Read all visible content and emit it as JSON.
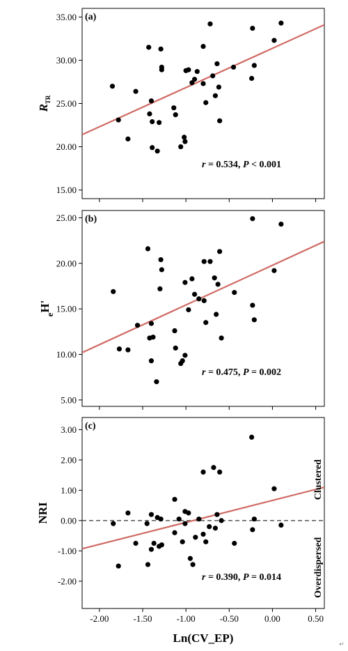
{
  "colors": {
    "point": "#000000",
    "fit_line": "#d06a64",
    "zero_line": "#333333",
    "frame": "#000000"
  },
  "chart_data": [
    {
      "type": "scatter",
      "panel_label": "(a)",
      "ylabel_main": "R",
      "ylabel_sub": "TR",
      "xlim": [
        -2.2,
        0.6
      ],
      "ylim": [
        14,
        36
      ],
      "yticks": [
        15,
        20,
        25,
        30,
        35
      ],
      "ytick_labels": [
        "15.00",
        "20.00",
        "25.00",
        "30.00",
        "35.00"
      ],
      "stat_r": "r",
      "stat_r_value": " = 0.534, ",
      "stat_p": "P",
      "stat_p_value": " < 0.001",
      "fit": {
        "x": [
          -2.2,
          0.6
        ],
        "y": [
          21.4,
          34.1
        ]
      },
      "points": [
        {
          "x": -1.85,
          "y": 27.0
        },
        {
          "x": -1.78,
          "y": 23.1
        },
        {
          "x": -1.67,
          "y": 20.9
        },
        {
          "x": -1.58,
          "y": 26.4
        },
        {
          "x": -1.43,
          "y": 31.5
        },
        {
          "x": -1.42,
          "y": 23.8
        },
        {
          "x": -1.4,
          "y": 25.3
        },
        {
          "x": -1.39,
          "y": 22.9
        },
        {
          "x": -1.39,
          "y": 19.9
        },
        {
          "x": -1.33,
          "y": 19.5
        },
        {
          "x": -1.31,
          "y": 22.8
        },
        {
          "x": -1.29,
          "y": 31.3
        },
        {
          "x": -1.28,
          "y": 29.2
        },
        {
          "x": -1.28,
          "y": 28.9
        },
        {
          "x": -1.14,
          "y": 24.5
        },
        {
          "x": -1.12,
          "y": 23.7
        },
        {
          "x": -1.06,
          "y": 20.0
        },
        {
          "x": -1.02,
          "y": 21.1
        },
        {
          "x": -1.01,
          "y": 20.6
        },
        {
          "x": -1.0,
          "y": 28.8
        },
        {
          "x": -0.97,
          "y": 28.9
        },
        {
          "x": -0.93,
          "y": 27.4
        },
        {
          "x": -0.9,
          "y": 27.8
        },
        {
          "x": -0.87,
          "y": 28.7
        },
        {
          "x": -0.8,
          "y": 31.6
        },
        {
          "x": -0.8,
          "y": 27.3
        },
        {
          "x": -0.77,
          "y": 25.1
        },
        {
          "x": -0.72,
          "y": 34.2
        },
        {
          "x": -0.69,
          "y": 28.2
        },
        {
          "x": -0.66,
          "y": 25.9
        },
        {
          "x": -0.64,
          "y": 29.6
        },
        {
          "x": -0.62,
          "y": 26.9
        },
        {
          "x": -0.61,
          "y": 23.0
        },
        {
          "x": -0.45,
          "y": 29.2
        },
        {
          "x": -0.24,
          "y": 27.9
        },
        {
          "x": -0.23,
          "y": 33.7
        },
        {
          "x": -0.21,
          "y": 29.4
        },
        {
          "x": 0.02,
          "y": 32.3
        },
        {
          "x": 0.1,
          "y": 34.3
        }
      ]
    },
    {
      "type": "scatter",
      "panel_label": "(b)",
      "ylabel_main": "H'",
      "ylabel_sub": "e",
      "xlim": [
        -2.2,
        0.6
      ],
      "ylim": [
        4.3,
        25.8
      ],
      "yticks": [
        5,
        10,
        15,
        20,
        25
      ],
      "ytick_labels": [
        "5.00",
        "10.00",
        "15.00",
        "20.00",
        "25.00"
      ],
      "stat_r": "r",
      "stat_r_value": " = 0.475, ",
      "stat_p": "P",
      "stat_p_value": " = 0.002",
      "fit": {
        "x": [
          -2.2,
          0.6
        ],
        "y": [
          10.2,
          22.4
        ]
      },
      "points": [
        {
          "x": -1.84,
          "y": 16.9
        },
        {
          "x": -1.77,
          "y": 10.6
        },
        {
          "x": -1.67,
          "y": 10.5
        },
        {
          "x": -1.56,
          "y": 13.2
        },
        {
          "x": -1.44,
          "y": 21.6
        },
        {
          "x": -1.42,
          "y": 11.8
        },
        {
          "x": -1.4,
          "y": 13.4
        },
        {
          "x": -1.4,
          "y": 9.3
        },
        {
          "x": -1.38,
          "y": 11.9
        },
        {
          "x": -1.34,
          "y": 7.0
        },
        {
          "x": -1.3,
          "y": 17.2
        },
        {
          "x": -1.29,
          "y": 20.4
        },
        {
          "x": -1.28,
          "y": 19.3
        },
        {
          "x": -1.13,
          "y": 12.6
        },
        {
          "x": -1.12,
          "y": 10.7
        },
        {
          "x": -1.06,
          "y": 9.0
        },
        {
          "x": -1.04,
          "y": 9.3
        },
        {
          "x": -1.01,
          "y": 9.9
        },
        {
          "x": -1.01,
          "y": 17.9
        },
        {
          "x": -0.97,
          "y": 14.9
        },
        {
          "x": -0.93,
          "y": 18.3
        },
        {
          "x": -0.9,
          "y": 16.6
        },
        {
          "x": -0.85,
          "y": 16.1
        },
        {
          "x": -0.79,
          "y": 20.2
        },
        {
          "x": -0.79,
          "y": 15.9
        },
        {
          "x": -0.77,
          "y": 13.5
        },
        {
          "x": -0.72,
          "y": 20.2
        },
        {
          "x": -0.67,
          "y": 18.4
        },
        {
          "x": -0.65,
          "y": 14.4
        },
        {
          "x": -0.63,
          "y": 17.7
        },
        {
          "x": -0.61,
          "y": 21.3
        },
        {
          "x": -0.59,
          "y": 11.8
        },
        {
          "x": -0.44,
          "y": 16.8
        },
        {
          "x": -0.23,
          "y": 15.4
        },
        {
          "x": -0.23,
          "y": 24.9
        },
        {
          "x": -0.21,
          "y": 13.8
        },
        {
          "x": 0.02,
          "y": 19.2
        },
        {
          "x": 0.1,
          "y": 24.3
        }
      ]
    },
    {
      "type": "scatter",
      "panel_label": "(c)",
      "ylabel_main": "NRI",
      "ylabel_sub": "",
      "xlim": [
        -2.2,
        0.6
      ],
      "ylim": [
        -2.9,
        3.4
      ],
      "yticks": [
        -2,
        -1,
        0,
        1,
        2,
        3
      ],
      "ytick_labels": [
        "-2.00",
        "-1.00",
        "0.00",
        "1.00",
        "2.00",
        "3.00"
      ],
      "stat_r": "r",
      "stat_r_value": " = 0.390, ",
      "stat_p": "P",
      "stat_p_value": " = 0.014",
      "side_upper": "Clustered",
      "side_lower": "Overdispersed",
      "zero_line": 0,
      "fit": {
        "x": [
          -2.2,
          0.6
        ],
        "y": [
          -0.93,
          1.1
        ]
      },
      "points": [
        {
          "x": -1.84,
          "y": -0.1
        },
        {
          "x": -1.78,
          "y": -1.5
        },
        {
          "x": -1.67,
          "y": 0.25
        },
        {
          "x": -1.58,
          "y": -0.75
        },
        {
          "x": -1.45,
          "y": -0.1
        },
        {
          "x": -1.44,
          "y": -1.45
        },
        {
          "x": -1.4,
          "y": 0.2
        },
        {
          "x": -1.4,
          "y": -0.95
        },
        {
          "x": -1.37,
          "y": -0.75
        },
        {
          "x": -1.33,
          "y": 0.1
        },
        {
          "x": -1.31,
          "y": -0.85
        },
        {
          "x": -1.29,
          "y": 0.05
        },
        {
          "x": -1.28,
          "y": -0.8
        },
        {
          "x": -1.13,
          "y": 0.7
        },
        {
          "x": -1.13,
          "y": -0.4
        },
        {
          "x": -1.08,
          "y": 0.05
        },
        {
          "x": -1.04,
          "y": -0.7
        },
        {
          "x": -1.01,
          "y": 0.3
        },
        {
          "x": -1.01,
          "y": -0.1
        },
        {
          "x": -0.97,
          "y": 0.25
        },
        {
          "x": -0.95,
          "y": -1.25
        },
        {
          "x": -0.92,
          "y": -1.45
        },
        {
          "x": -0.89,
          "y": -0.55
        },
        {
          "x": -0.85,
          "y": 0.05
        },
        {
          "x": -0.8,
          "y": 1.6
        },
        {
          "x": -0.8,
          "y": -0.45
        },
        {
          "x": -0.77,
          "y": -0.7
        },
        {
          "x": -0.73,
          "y": -0.2
        },
        {
          "x": -0.68,
          "y": 1.75
        },
        {
          "x": -0.66,
          "y": -0.25
        },
        {
          "x": -0.64,
          "y": 0.2
        },
        {
          "x": -0.61,
          "y": 1.6
        },
        {
          "x": -0.59,
          "y": 0.0
        },
        {
          "x": -0.44,
          "y": -0.75
        },
        {
          "x": -0.24,
          "y": 2.75
        },
        {
          "x": -0.23,
          "y": -0.3
        },
        {
          "x": -0.21,
          "y": 0.05
        },
        {
          "x": 0.02,
          "y": 1.05
        },
        {
          "x": 0.1,
          "y": -0.15
        }
      ]
    }
  ],
  "x_axis": {
    "label": "Ln(CV_EP)",
    "ticks": [
      -2.0,
      -1.5,
      -1.0,
      -0.5,
      0.0,
      0.5
    ],
    "tick_labels": [
      "-2.00",
      "-1.50",
      "-1.00",
      "-0.50",
      "0.00",
      "0.50"
    ]
  },
  "corner_mark": "↵"
}
